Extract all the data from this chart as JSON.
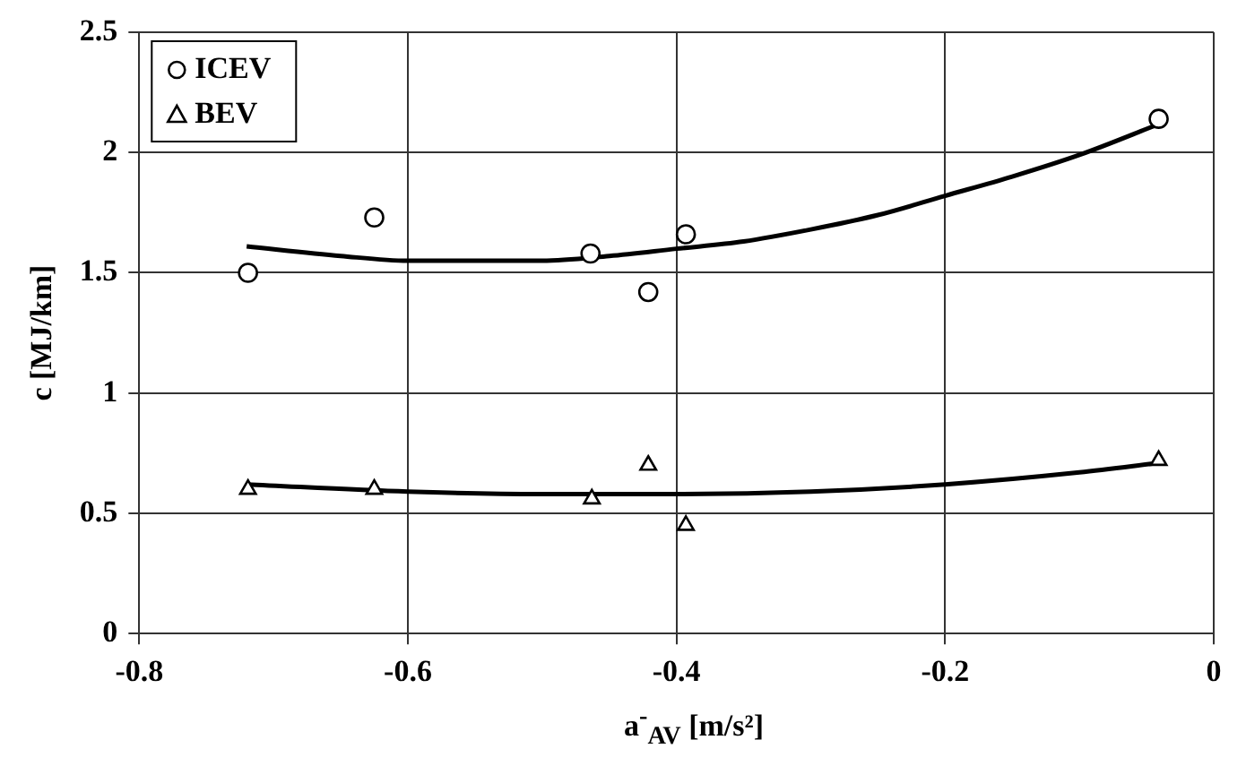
{
  "chart_data": {
    "type": "scatter",
    "xlabel": "a$^{-}$$_{AV}$ [m/s²]",
    "ylabel": "c [MJ/km]",
    "xlim": [
      -0.8,
      0
    ],
    "xticks": [
      -0.8,
      -0.6,
      -0.4,
      -0.2,
      0
    ],
    "ylim": [
      0,
      2.5
    ],
    "yticks": [
      0,
      0.5,
      1,
      1.5,
      2,
      2.5
    ],
    "grid": true,
    "legend": "top left",
    "series": [
      {
        "name": "ICEV",
        "color": "#000000",
        "marker": "circle",
        "x": [
          -0.719,
          -0.625,
          -0.464,
          -0.421,
          -0.393,
          -0.041
        ],
        "values": [
          1.5,
          1.73,
          1.58,
          1.42,
          1.66,
          2.14
        ]
      },
      {
        "name": "BEV",
        "color": "#000000",
        "marker": "triangle",
        "x": [
          -0.719,
          -0.625,
          -0.463,
          -0.421,
          -0.393,
          -0.041
        ],
        "values": [
          0.6,
          0.6,
          0.56,
          0.7,
          0.45,
          0.72
        ]
      },
      {
        "type": "line",
        "color": "#000000",
        "marker": "none",
        "x": [
          -0.72,
          -0.65,
          -0.6,
          -0.55,
          -0.5,
          -0.45,
          -0.4,
          -0.35,
          -0.3,
          -0.25,
          -0.2,
          -0.15,
          -0.1,
          -0.04
        ],
        "values": [
          1.61,
          1.57,
          1.55,
          1.55,
          1.55,
          1.57,
          1.6,
          1.63,
          1.68,
          1.74,
          1.82,
          1.9,
          1.99,
          2.12
        ]
      },
      {
        "type": "line",
        "color": "#000000",
        "marker": "none",
        "x": [
          -0.72,
          -0.6,
          -0.5,
          -0.45,
          -0.4,
          -0.3,
          -0.2,
          -0.1,
          -0.04
        ],
        "values": [
          0.62,
          0.59,
          0.58,
          0.58,
          0.58,
          0.59,
          0.62,
          0.67,
          0.71
        ]
      }
    ]
  }
}
